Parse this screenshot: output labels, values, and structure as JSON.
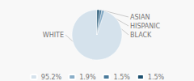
{
  "chart_data": {
    "type": "pie",
    "categories": [
      "WHITE",
      "ASIAN",
      "HISPANIC",
      "BLACK"
    ],
    "values": [
      95.2,
      1.9,
      1.5,
      1.5
    ],
    "value_labels": [
      "95.2%",
      "1.9%",
      "1.5%",
      "1.5%"
    ],
    "colors": [
      "#d5e2ec",
      "#8aaec8",
      "#4a7a9b",
      "#1b4f6e"
    ],
    "legend": "bottom"
  }
}
